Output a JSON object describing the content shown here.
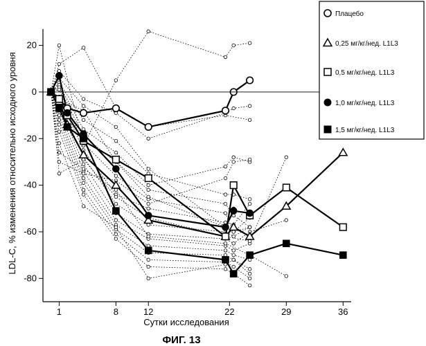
{
  "chart_data": {
    "type": "line",
    "title": "",
    "xlabel": "Сутки исследования",
    "ylabel": "LDL-C, % изменения относительно исходного уровня",
    "caption": "ФИГ. 13",
    "xlim": [
      -1,
      37
    ],
    "ylim": [
      -90,
      27
    ],
    "x_ticks": [
      1,
      8,
      12,
      22,
      29,
      36
    ],
    "y_ticks": [
      20,
      0,
      -20,
      -40,
      -60,
      -80
    ],
    "reference_line_y": 0,
    "grid": false,
    "legend_position": "right-top",
    "legend": [
      {
        "label": "Плацебо",
        "marker": "circle-open"
      },
      {
        "label": "0,25 мг/кг/нед. L1L3",
        "marker": "triangle-open"
      },
      {
        "label": "0,5 мг/кг/нед. L1L3",
        "marker": "square-open"
      },
      {
        "label": "1,0 мг/кг/нед. L1L3",
        "marker": "circle-filled"
      },
      {
        "label": "1,5 мг/кг/нед. L1L3",
        "marker": "square-filled"
      }
    ],
    "series": [
      {
        "marker": "circle-open",
        "points": [
          [
            0,
            0
          ],
          [
            1,
            -3
          ],
          [
            2,
            -7
          ],
          [
            4,
            -9
          ],
          [
            8,
            -7
          ],
          [
            12,
            -15
          ],
          [
            21.5,
            -8
          ],
          [
            22.5,
            0
          ],
          [
            24.5,
            5
          ]
        ]
      },
      {
        "marker": "triangle-open",
        "points": [
          [
            0,
            0
          ],
          [
            1,
            -4
          ],
          [
            2,
            -14
          ],
          [
            4,
            -27
          ],
          [
            8,
            -40
          ],
          [
            12,
            -55
          ],
          [
            21.5,
            -62
          ],
          [
            22.5,
            -58
          ],
          [
            24.5,
            -62
          ],
          [
            29,
            -49
          ],
          [
            36,
            -26
          ]
        ]
      },
      {
        "marker": "square-open",
        "points": [
          [
            0,
            0
          ],
          [
            1,
            -3
          ],
          [
            2,
            -10
          ],
          [
            4,
            -21
          ],
          [
            8,
            -29
          ],
          [
            12,
            -37
          ],
          [
            21.5,
            -62
          ],
          [
            22.5,
            -40
          ],
          [
            24.5,
            -53
          ],
          [
            29,
            -41
          ],
          [
            36,
            -58
          ]
        ]
      },
      {
        "marker": "circle-filled",
        "points": [
          [
            0,
            0
          ],
          [
            1,
            7
          ],
          [
            2,
            -9
          ],
          [
            4,
            -18
          ],
          [
            8,
            -33
          ],
          [
            12,
            -53
          ],
          [
            21.5,
            -58
          ],
          [
            22.5,
            -51
          ],
          [
            24.5,
            -52
          ]
        ]
      },
      {
        "marker": "square-filled",
        "points": [
          [
            0,
            0
          ],
          [
            1,
            -7
          ],
          [
            2,
            -15
          ],
          [
            4,
            -20
          ],
          [
            8,
            -51
          ],
          [
            12,
            -68
          ],
          [
            21.5,
            -72
          ],
          [
            22.5,
            -78
          ],
          [
            24.5,
            -70
          ],
          [
            29,
            -65
          ],
          [
            36,
            -70
          ]
        ]
      }
    ],
    "individual_dotted": [
      [
        [
          0,
          0
        ],
        [
          1,
          20
        ],
        [
          4,
          -23
        ],
        [
          8,
          5
        ],
        [
          12,
          26
        ],
        [
          21.5,
          15
        ],
        [
          22.5,
          20
        ],
        [
          24.5,
          21
        ]
      ],
      [
        [
          0,
          0
        ],
        [
          1,
          12
        ],
        [
          4,
          19
        ],
        [
          8,
          -7
        ],
        [
          12,
          -15
        ],
        [
          21.5,
          -10
        ],
        [
          24.5,
          -12
        ]
      ],
      [
        [
          0,
          0
        ],
        [
          1,
          9
        ],
        [
          4,
          -3
        ],
        [
          8,
          -9
        ],
        [
          12,
          -20
        ],
        [
          21.5,
          -9
        ],
        [
          22.5,
          -7
        ],
        [
          24.5,
          -6
        ]
      ],
      [
        [
          0,
          0
        ],
        [
          1,
          6
        ],
        [
          4,
          -6
        ],
        [
          8,
          -15
        ],
        [
          12,
          -33
        ],
        [
          21.5,
          -58
        ],
        [
          22.5,
          -50
        ]
      ],
      [
        [
          0,
          0
        ],
        [
          1,
          4
        ],
        [
          4,
          -12
        ],
        [
          8,
          -21
        ],
        [
          12,
          -35
        ],
        [
          21.5,
          -44
        ],
        [
          22.5,
          -44
        ],
        [
          24.5,
          -46
        ]
      ],
      [
        [
          0,
          0
        ],
        [
          1,
          3
        ],
        [
          4,
          -16
        ],
        [
          8,
          -26
        ],
        [
          12,
          -40
        ],
        [
          21.5,
          -32
        ],
        [
          22.5,
          -28
        ],
        [
          24.5,
          -30
        ]
      ],
      [
        [
          0,
          0
        ],
        [
          1,
          2
        ],
        [
          4,
          -19
        ],
        [
          8,
          -30
        ],
        [
          12,
          -42
        ],
        [
          21.5,
          -48
        ],
        [
          22.5,
          -53
        ],
        [
          24.5,
          -58
        ]
      ],
      [
        [
          0,
          0
        ],
        [
          1,
          1
        ],
        [
          4,
          -22
        ],
        [
          8,
          -36
        ],
        [
          12,
          -46
        ],
        [
          21.5,
          -52
        ],
        [
          22.5,
          -60
        ],
        [
          24.5,
          -54
        ]
      ],
      [
        [
          0,
          0
        ],
        [
          1,
          -2
        ],
        [
          4,
          -25
        ],
        [
          8,
          -44
        ],
        [
          12,
          -50
        ],
        [
          21.5,
          -56
        ],
        [
          22.5,
          -57
        ],
        [
          24.5,
          -48
        ]
      ],
      [
        [
          0,
          0
        ],
        [
          1,
          -4
        ],
        [
          4,
          -28
        ],
        [
          8,
          -48
        ],
        [
          12,
          -57
        ],
        [
          21.5,
          -60
        ],
        [
          22.5,
          -62
        ],
        [
          24.5,
          -58
        ]
      ],
      [
        [
          0,
          0
        ],
        [
          1,
          -6
        ],
        [
          4,
          -31
        ],
        [
          8,
          -52
        ],
        [
          12,
          -61
        ],
        [
          21.5,
          -63
        ],
        [
          22.5,
          -65
        ],
        [
          24.5,
          -60
        ],
        [
          29,
          -55
        ]
      ],
      [
        [
          0,
          0
        ],
        [
          1,
          -8
        ],
        [
          4,
          -34
        ],
        [
          8,
          -55
        ],
        [
          12,
          -63
        ],
        [
          21.5,
          -66
        ],
        [
          22.5,
          -68
        ],
        [
          24.5,
          -65
        ]
      ],
      [
        [
          0,
          0
        ],
        [
          1,
          -10
        ],
        [
          4,
          -37
        ],
        [
          8,
          -57
        ],
        [
          12,
          -66
        ],
        [
          21.5,
          -68
        ],
        [
          22.5,
          -70
        ],
        [
          24.5,
          -72
        ]
      ],
      [
        [
          0,
          0
        ],
        [
          1,
          -12
        ],
        [
          4,
          -39
        ],
        [
          8,
          -59
        ],
        [
          12,
          -69
        ],
        [
          21.5,
          -70
        ],
        [
          22.5,
          -72
        ],
        [
          24.5,
          -76
        ]
      ],
      [
        [
          0,
          0
        ],
        [
          1,
          -14
        ],
        [
          4,
          -42
        ],
        [
          8,
          -61
        ],
        [
          12,
          -72
        ],
        [
          21.5,
          -73
        ],
        [
          22.5,
          -75
        ],
        [
          24.5,
          -80
        ]
      ],
      [
        [
          0,
          0
        ],
        [
          1,
          -17
        ],
        [
          4,
          -44
        ],
        [
          8,
          -63
        ],
        [
          12,
          -75
        ],
        [
          21.5,
          -76
        ],
        [
          22.5,
          -78
        ],
        [
          24.5,
          -83
        ]
      ],
      [
        [
          0,
          0
        ],
        [
          1,
          -22
        ],
        [
          4,
          -49
        ],
        [
          8,
          -58
        ],
        [
          12,
          -80
        ],
        [
          21.5,
          -74
        ],
        [
          22.5,
          -72
        ],
        [
          24.5,
          -78
        ]
      ],
      [
        [
          0,
          0
        ],
        [
          1,
          -26
        ],
        [
          4,
          -33
        ],
        [
          8,
          -42
        ],
        [
          12,
          -62
        ],
        [
          21.5,
          -65
        ],
        [
          24.5,
          -70
        ],
        [
          29,
          -79
        ]
      ],
      [
        [
          0,
          0
        ],
        [
          1,
          -30
        ],
        [
          4,
          -35
        ],
        [
          8,
          -38
        ],
        [
          12,
          -48
        ],
        [
          21.5,
          -37
        ],
        [
          22.5,
          -30
        ],
        [
          24.5,
          -29
        ]
      ],
      [
        [
          0,
          0
        ],
        [
          1,
          -35
        ],
        [
          4,
          -29
        ],
        [
          8,
          -45
        ],
        [
          12,
          -54
        ],
        [
          21.5,
          -62
        ],
        [
          24.5,
          -64
        ],
        [
          29,
          -28
        ]
      ],
      [
        [
          0,
          0
        ],
        [
          1,
          -3
        ],
        [
          4,
          -8
        ],
        [
          8,
          -30
        ],
        [
          12,
          -45
        ],
        [
          21.5,
          -58
        ],
        [
          22.5,
          -60
        ],
        [
          24.5,
          -58
        ]
      ]
    ]
  }
}
